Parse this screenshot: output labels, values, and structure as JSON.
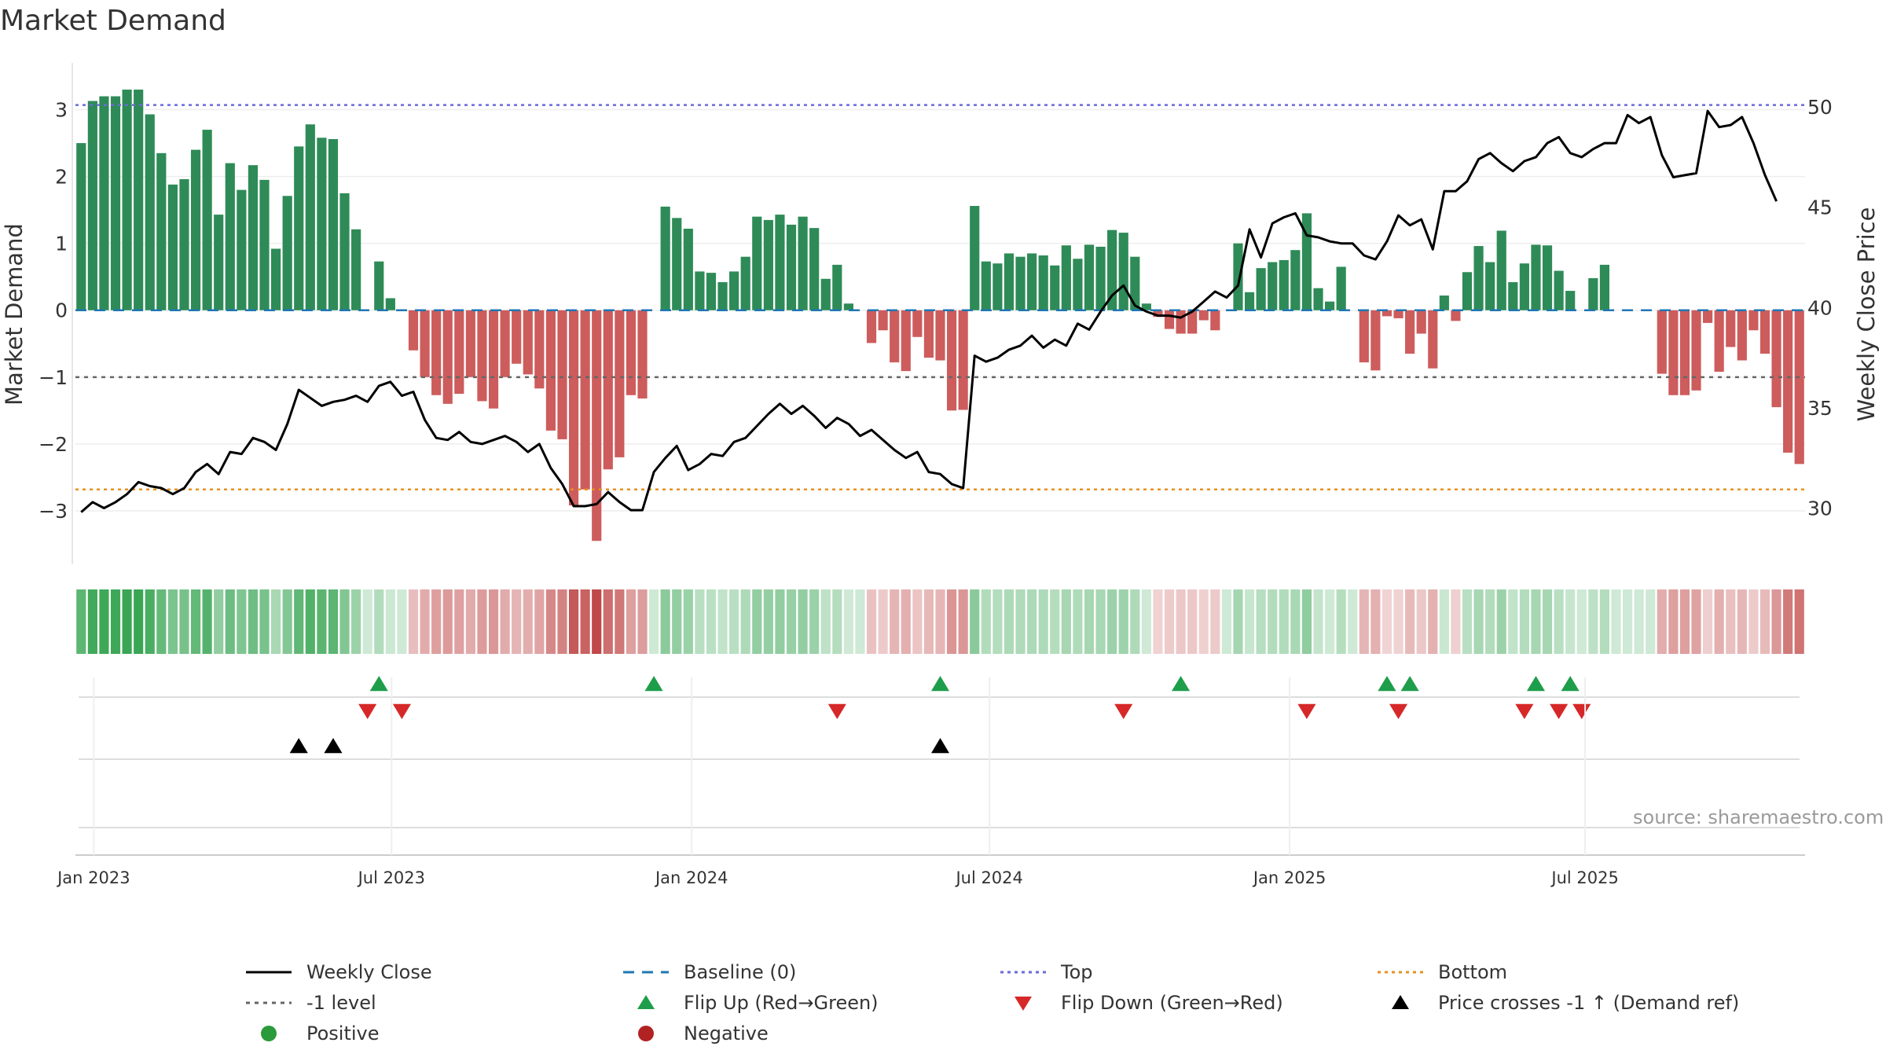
{
  "title": "Market Demand",
  "source": "source: sharemaestro.com",
  "colors": {
    "positive_bar": "#2e8b57",
    "negative_bar": "#cd5c5c",
    "price_line": "#000000",
    "baseline": "#1f77b4",
    "top_line": "#6a6adb",
    "bottom_line": "#e69020",
    "minus1_line": "#666666",
    "flip_up": "#1e9e4a",
    "flip_down": "#d62828",
    "cross_marker": "#000000",
    "positive_dot": "#2a9a3a",
    "negative_dot": "#b22222"
  },
  "legend": [
    {
      "label": "Weekly Close",
      "icon": "solid-line-black"
    },
    {
      "label": "Baseline (0)",
      "icon": "dashed-line-blue"
    },
    {
      "label": "Top",
      "icon": "dotted-line-purple"
    },
    {
      "label": "Bottom",
      "icon": "dotted-line-orange"
    },
    {
      "label": "-1 level",
      "icon": "dotted-line-gray"
    },
    {
      "label": "Flip Up (Red→Green)",
      "icon": "triangle-up-green"
    },
    {
      "label": "Flip Down (Green→Red)",
      "icon": "triangle-down-red"
    },
    {
      "label": "Price crosses -1 ↑ (Demand ref)",
      "icon": "triangle-up-black"
    },
    {
      "label": "Positive",
      "icon": "circle-green"
    },
    {
      "label": "Negative",
      "icon": "circle-red"
    }
  ],
  "chart_data": {
    "type": "bar",
    "title": "Market Demand",
    "ylabel": "Market Demand",
    "y2label": "Weekly Close Price",
    "ylim": [
      -3.8,
      3.7
    ],
    "y2lim": [
      27.2,
      52.2
    ],
    "yticks": [
      -3,
      -2,
      -1,
      0,
      1,
      2,
      3
    ],
    "yticklabels": [
      "−3",
      "−2",
      "−1",
      "0",
      "1",
      "2",
      "3"
    ],
    "y2ticks": [
      30,
      35,
      40,
      45,
      50
    ],
    "xticks": [
      {
        "label": "Jan 2023",
        "index": 1.6
      },
      {
        "label": "Jul 2023",
        "index": 27.6
      },
      {
        "label": "Jan 2024",
        "index": 53.8
      },
      {
        "label": "Jul 2024",
        "index": 79.8
      },
      {
        "label": "Jan 2025",
        "index": 106.0
      },
      {
        "label": "Jul 2025",
        "index": 131.8
      }
    ],
    "reference_lines": {
      "top": 3.07,
      "bottom": -2.68,
      "minus_one": -1,
      "baseline": 0
    },
    "grid": true,
    "legend_position": "bottom",
    "demand": [
      2.5,
      3.13,
      3.2,
      3.2,
      3.3,
      3.3,
      2.93,
      2.35,
      1.88,
      1.96,
      2.4,
      2.7,
      1.43,
      2.2,
      1.8,
      2.17,
      1.95,
      0.92,
      1.71,
      2.45,
      2.78,
      2.58,
      2.56,
      1.75,
      1.21,
      0,
      0.73,
      0.18,
      0,
      -0.6,
      -1.0,
      -1.27,
      -1.4,
      -1.25,
      -1.0,
      -1.36,
      -1.47,
      -1.0,
      -0.8,
      -0.96,
      -1.17,
      -1.8,
      -1.93,
      -2.92,
      -2.68,
      -3.45,
      -2.38,
      -2.2,
      -1.27,
      -1.32,
      0,
      1.55,
      1.38,
      1.22,
      0.58,
      0.56,
      0.42,
      0.58,
      0.8,
      1.4,
      1.35,
      1.43,
      1.28,
      1.4,
      1.23,
      0.47,
      0.68,
      0.1,
      0,
      -0.49,
      -0.3,
      -0.78,
      -0.91,
      -0.4,
      -0.71,
      -0.75,
      -1.5,
      -1.49,
      1.56,
      0.73,
      0.7,
      0.85,
      0.8,
      0.85,
      0.82,
      0.67,
      0.97,
      0.77,
      0.98,
      0.95,
      1.2,
      1.16,
      0.8,
      0.1,
      -0.1,
      -0.28,
      -0.35,
      -0.35,
      -0.15,
      -0.3,
      0,
      1.0,
      0.27,
      0.63,
      0.72,
      0.75,
      0.9,
      1.45,
      0.33,
      0.13,
      0.65,
      0,
      -0.78,
      -0.9,
      -0.09,
      -0.12,
      -0.65,
      -0.35,
      -0.87,
      0.22,
      -0.16,
      0.57,
      0.96,
      0.72,
      1.19,
      0.42,
      0.7,
      0.98,
      0.97,
      0.59,
      0.29,
      0,
      0.48,
      0.68,
      0,
      0,
      0,
      0,
      -0.95,
      -1.27,
      -1.27,
      -1.2,
      -0.19,
      -0.92,
      -0.55,
      -0.75,
      -0.3,
      -0.65,
      -1.45,
      -2.13,
      -2.3
    ],
    "weekly_close": [
      29.8,
      30.3,
      30.0,
      30.3,
      30.7,
      31.3,
      31.1,
      31.0,
      30.7,
      31.0,
      31.8,
      32.2,
      31.7,
      32.8,
      32.7,
      33.5,
      33.3,
      32.9,
      34.2,
      35.9,
      35.5,
      35.1,
      35.3,
      35.4,
      35.6,
      35.3,
      36.1,
      36.3,
      35.6,
      35.8,
      34.4,
      33.5,
      33.4,
      33.8,
      33.3,
      33.2,
      33.4,
      33.6,
      33.3,
      32.8,
      33.2,
      32.0,
      31.2,
      30.1,
      30.1,
      30.2,
      30.8,
      30.3,
      29.9,
      29.9,
      31.8,
      32.5,
      33.1,
      31.9,
      32.2,
      32.7,
      32.6,
      33.3,
      33.5,
      34.1,
      34.7,
      35.2,
      34.7,
      35.1,
      34.6,
      34.0,
      34.5,
      34.2,
      33.6,
      33.9,
      33.4,
      32.9,
      32.5,
      32.8,
      31.8,
      31.7,
      31.2,
      31.0,
      37.6,
      37.3,
      37.5,
      37.9,
      38.1,
      38.6,
      38.0,
      38.4,
      38.1,
      39.2,
      38.9,
      39.8,
      40.6,
      41.1,
      40.1,
      39.8,
      39.6,
      39.6,
      39.5,
      39.8,
      40.3,
      40.8,
      40.5,
      41.1,
      43.9,
      42.5,
      44.2,
      44.5,
      44.7,
      43.6,
      43.5,
      43.3,
      43.2,
      43.2,
      42.6,
      42.4,
      43.3,
      44.6,
      44.1,
      44.4,
      42.9,
      45.8,
      45.8,
      46.3,
      47.4,
      47.7,
      47.2,
      46.8,
      47.3,
      47.5,
      48.2,
      48.5,
      47.7,
      47.5,
      47.9,
      48.2,
      48.2,
      49.6,
      49.2,
      49.5,
      47.6,
      46.5,
      46.6,
      46.7,
      49.8,
      49.0,
      49.1,
      49.5,
      48.2,
      46.6,
      45.3
    ]
  },
  "heat_strip": {
    "description_levels": "per-week colour intensity mirrors demand"
  },
  "markers": {
    "flip_up": [
      26,
      50,
      75,
      96,
      114,
      116,
      127,
      130
    ],
    "flip_down": [
      25,
      28,
      66,
      91,
      107,
      115,
      126,
      129,
      131
    ],
    "price_cross_up": [
      19,
      22,
      75
    ]
  }
}
